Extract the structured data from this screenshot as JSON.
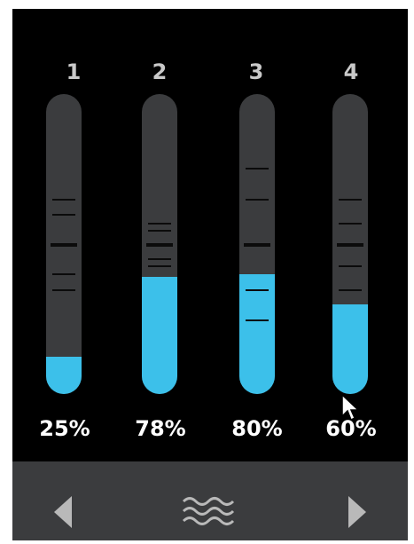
{
  "tanks": [
    {
      "label": "1",
      "percent_text": "25%",
      "level": 0.125
    },
    {
      "label": "2",
      "percent_text": "78%",
      "level": 0.39
    },
    {
      "label": "3",
      "percent_text": "80%",
      "level": 0.4
    },
    {
      "label": "4",
      "percent_text": "60%",
      "level": 0.3
    }
  ],
  "colors": {
    "background": "#000000",
    "tube": "#3b3c3e",
    "fill": "#3cc0ea",
    "label": "#c9c9c9",
    "percent": "#ffffff",
    "bottom_bar": "#3b3c3e",
    "icon": "#b9b9b9"
  },
  "controls": {
    "prev_icon": "triangle-left-icon",
    "mode_icon": "waves-icon",
    "next_icon": "triangle-right-icon"
  }
}
